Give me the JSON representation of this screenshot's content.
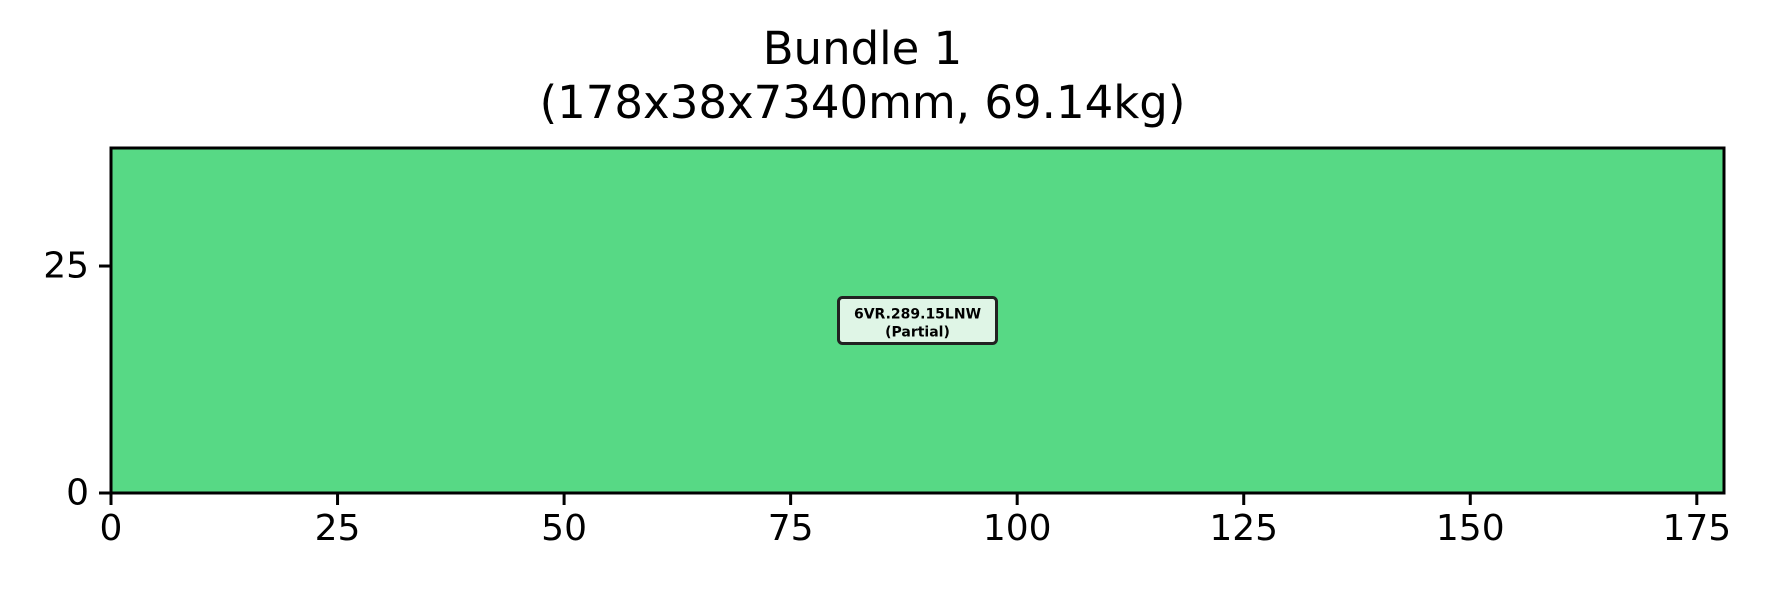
{
  "chart_data": {
    "type": "bar",
    "title": "Bundle 1",
    "subtitle": "(178x38x7340mm, 69.14kg)",
    "xlim": [
      0,
      178
    ],
    "ylim": [
      0,
      38
    ],
    "xticks": [
      0,
      25,
      50,
      75,
      100,
      125,
      150,
      175
    ],
    "yticks": [
      0,
      25
    ],
    "grid": false,
    "rectangles": [
      {
        "x": 0,
        "y": 0,
        "width": 178,
        "height": 38,
        "color": "#57d985",
        "label": "6VR.289.15LNW",
        "sublabel": "(Partial)"
      }
    ]
  },
  "colors": {
    "fill": "#57d985",
    "label_box": "#dff5e6",
    "border": "#000000"
  }
}
